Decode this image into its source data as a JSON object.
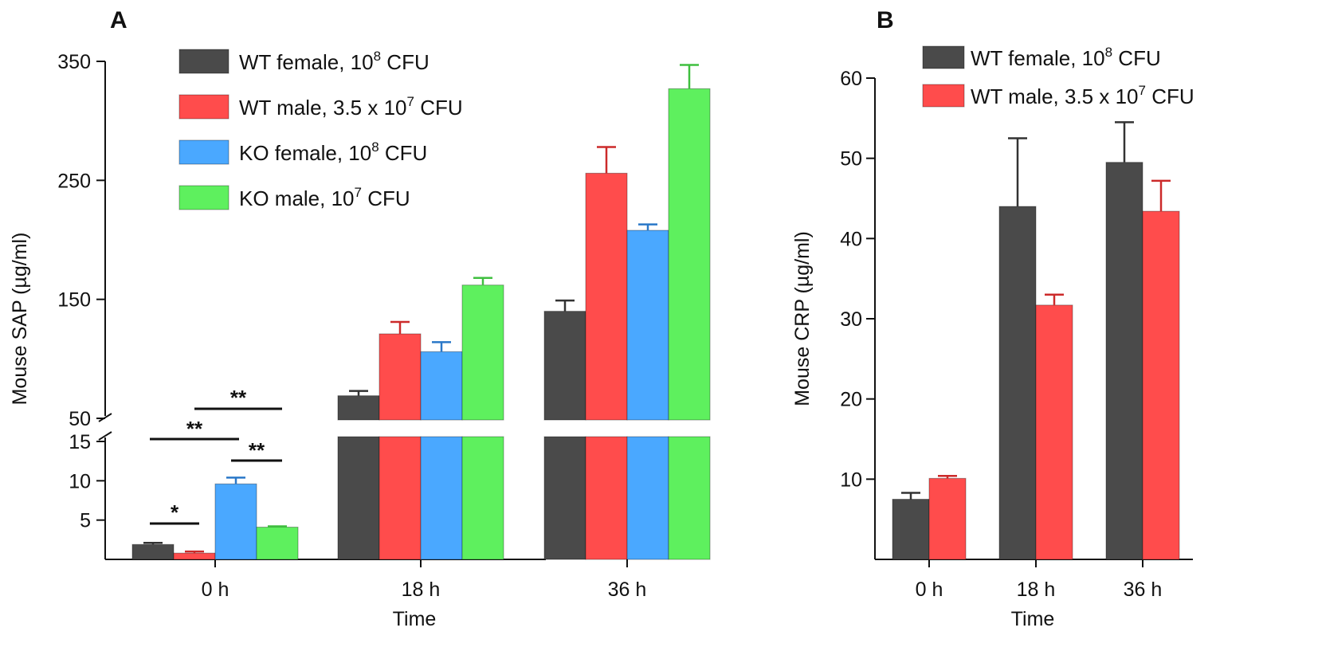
{
  "colors": {
    "WT female": "#4a4a4a",
    "WT male": "#ff4c4c",
    "KO female": "#4aa8ff",
    "KO male": "#5ef05e",
    "WT female err": "#333333",
    "WT male err": "#cc2a2a",
    "KO female err": "#2a78c8",
    "KO male err": "#3fbf3f"
  },
  "chart_data": [
    {
      "type": "bar",
      "panel": "A",
      "ylabel": "Mouse SAP (µg/ml)",
      "xlabel": "Time",
      "categories": [
        "0 h",
        "18 h",
        "36 h"
      ],
      "y_axis_break": {
        "lower_range": [
          0,
          15
        ],
        "upper_range": [
          50,
          350
        ]
      },
      "yticks_lower": [
        "5",
        "10",
        "15"
      ],
      "yticks_upper": [
        "50",
        "150",
        "250",
        "350"
      ],
      "legend": [
        {
          "key": "WT female",
          "base": "WT female, 10",
          "sup": "8",
          "unit": " CFU"
        },
        {
          "key": "WT male",
          "base": "WT male, 3.5 x 10",
          "sup": "7",
          "unit": " CFU"
        },
        {
          "key": "KO female",
          "base": "KO female, 10",
          "sup": "8",
          "unit": " CFU"
        },
        {
          "key": "KO male",
          "base": "KO male, 10",
          "sup": "7",
          "unit": " CFU"
        }
      ],
      "series": [
        {
          "name": "WT female",
          "values": [
            1.9,
            69,
            140
          ],
          "errors": [
            0.2,
            4,
            9
          ]
        },
        {
          "name": "WT male",
          "values": [
            0.8,
            121,
            256
          ],
          "errors": [
            0.2,
            10,
            22
          ]
        },
        {
          "name": "KO female",
          "values": [
            9.6,
            106,
            208
          ],
          "errors": [
            0.8,
            8,
            5
          ]
        },
        {
          "name": "KO male",
          "values": [
            4.1,
            162,
            327
          ],
          "errors": [
            0.1,
            6,
            20
          ]
        }
      ],
      "significance": [
        {
          "label": "*",
          "from": "WT female",
          "to": "WT male",
          "group": "0 h"
        },
        {
          "label": "**",
          "from": "WT male",
          "to": "KO male",
          "group": "0 h"
        },
        {
          "label": "**",
          "from": "WT female",
          "to": "KO female",
          "group": "0 h"
        },
        {
          "label": "**",
          "from": "KO female",
          "to": "KO male",
          "group": "0 h"
        }
      ]
    },
    {
      "type": "bar",
      "panel": "B",
      "ylabel": "Mouse CRP (µg/ml)",
      "xlabel": "Time",
      "categories": [
        "0 h",
        "18 h",
        "36 h"
      ],
      "ylim": [
        0,
        60
      ],
      "yticks": [
        "10",
        "20",
        "30",
        "40",
        "50",
        "60"
      ],
      "legend": [
        {
          "key": "WT female",
          "base": "WT female, 10",
          "sup": "8",
          "unit": " CFU"
        },
        {
          "key": "WT male",
          "base": "WT male, 3.5 x 10",
          "sup": "7",
          "unit": " CFU"
        }
      ],
      "series": [
        {
          "name": "WT female",
          "values": [
            7.5,
            44,
            49.5
          ],
          "errors": [
            0.8,
            8.5,
            5
          ]
        },
        {
          "name": "WT male",
          "values": [
            10.1,
            31.7,
            43.4
          ],
          "errors": [
            0.3,
            1.3,
            3.8
          ]
        }
      ]
    }
  ]
}
